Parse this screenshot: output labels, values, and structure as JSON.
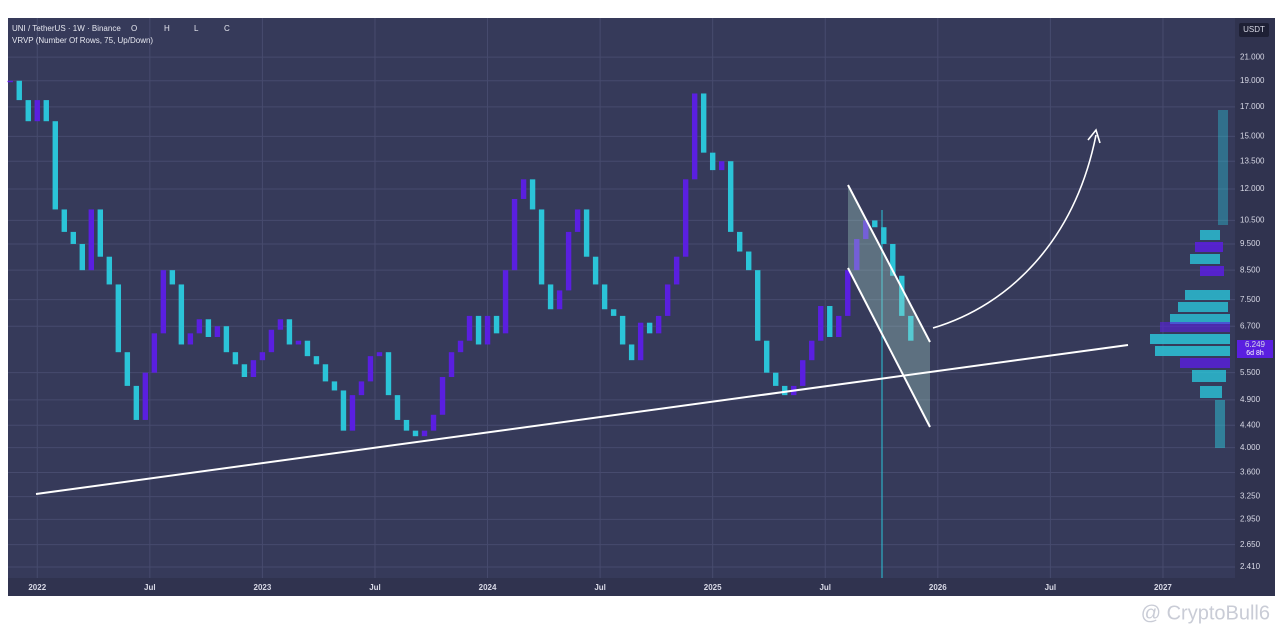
{
  "header": {
    "symbol": "UNI / TetherUS · 1W · Binance",
    "o": "O",
    "h": "H",
    "l": "L",
    "c": "C",
    "indicator": "VRVP (Number Of Rows, 75, Up/Down)"
  },
  "currency": "USDT",
  "price_label": "6.249",
  "countdown": "6d 8h",
  "watermark": "@ CryptoBull6",
  "chart_data": {
    "type": "candlestick",
    "up_color": "#5a1fe0",
    "down_color": "#2bc4d8",
    "log": true,
    "grid": true,
    "xlim": [
      2021.87,
      2027.32
    ],
    "ylim": [
      2.3,
      24.8
    ],
    "xticks": [
      2022,
      {
        "value": 2022.5,
        "label": "Jul"
      },
      2023,
      {
        "value": 2023.5,
        "label": "Jul"
      },
      2024,
      {
        "value": 2024.5,
        "label": "Jul"
      },
      2025,
      {
        "value": 2025.5,
        "label": "Jul"
      },
      2026,
      {
        "value": 2026.5,
        "label": "Jul"
      },
      2027
    ],
    "yticks": [
      {
        "value": 21,
        "label": "21.000"
      },
      {
        "value": 19,
        "label": "19.000"
      },
      {
        "value": 17,
        "label": "17.000"
      },
      {
        "value": 15,
        "label": "15.000"
      },
      {
        "value": 13.5,
        "label": "13.500"
      },
      {
        "value": 12,
        "label": "12.000"
      },
      {
        "value": 10.5,
        "label": "10.500"
      },
      {
        "value": 9.5,
        "label": "9.500"
      },
      {
        "value": 8.5,
        "label": "8.500"
      },
      {
        "value": 7.5,
        "label": "7.500"
      },
      {
        "value": 6.7,
        "label": "6.700"
      },
      {
        "value": 5.5,
        "label": "5.500"
      },
      {
        "value": 4.9,
        "label": "4.900"
      },
      {
        "value": 4.4,
        "label": "4.400"
      },
      {
        "value": 4,
        "label": "4.000"
      },
      {
        "value": 3.6,
        "label": "3.600"
      },
      {
        "value": 3.25,
        "label": "3.250"
      },
      {
        "value": 2.95,
        "label": "2.950"
      },
      {
        "value": 2.65,
        "label": "2.650"
      },
      {
        "value": 2.41,
        "label": "2.410"
      }
    ],
    "x": [
      2021.88,
      2021.92,
      2021.96,
      2022,
      2022.04,
      2022.08,
      2022.12,
      2022.16,
      2022.2,
      2022.24,
      2022.28,
      2022.32,
      2022.36,
      2022.4,
      2022.44,
      2022.48,
      2022.52,
      2022.56,
      2022.6,
      2022.64,
      2022.68,
      2022.72,
      2022.76,
      2022.8,
      2022.84,
      2022.88,
      2022.92,
      2022.96,
      2023,
      2023.04,
      2023.08,
      2023.12,
      2023.16,
      2023.2,
      2023.24,
      2023.28,
      2023.32,
      2023.36,
      2023.4,
      2023.44,
      2023.48,
      2023.52,
      2023.56,
      2023.6,
      2023.64,
      2023.68,
      2023.72,
      2023.76,
      2023.8,
      2023.84,
      2023.88,
      2023.92,
      2023.96,
      2024,
      2024.04,
      2024.08,
      2024.12,
      2024.16,
      2024.2,
      2024.24,
      2024.28,
      2024.32,
      2024.36,
      2024.4,
      2024.44,
      2024.48,
      2024.52,
      2024.56,
      2024.6,
      2024.64,
      2024.68,
      2024.72,
      2024.76,
      2024.8,
      2024.84,
      2024.88,
      2024.92,
      2024.96,
      2025,
      2025.04,
      2025.08,
      2025.12,
      2025.16,
      2025.2,
      2025.24,
      2025.28,
      2025.32,
      2025.36,
      2025.4,
      2025.44,
      2025.48,
      2025.52,
      2025.56,
      2025.6,
      2025.64,
      2025.68,
      2025.72,
      2025.76,
      2025.8,
      2025.84,
      2025.88
    ],
    "values": [
      19,
      17.5,
      16,
      17.5,
      16,
      11,
      10,
      9.5,
      8.5,
      11,
      9,
      8,
      6,
      5.2,
      4.5,
      5.5,
      6.5,
      8.5,
      8,
      6.2,
      6.5,
      6.9,
      6.4,
      6.7,
      6,
      5.7,
      5.4,
      5.8,
      6,
      6.6,
      6.9,
      6.2,
      6.3,
      5.9,
      5.7,
      5.3,
      5.1,
      4.3,
      5,
      5.3,
      5.9,
      6,
      5,
      4.5,
      4.3,
      4.2,
      4.3,
      4.6,
      5.4,
      6,
      6.3,
      7,
      6.2,
      7,
      6.5,
      8.5,
      11.5,
      12.5,
      11,
      8,
      7.2,
      7.8,
      10,
      11,
      9,
      8,
      7.2,
      7,
      6.2,
      5.8,
      6.8,
      6.5,
      7,
      8,
      9,
      12.5,
      18,
      14,
      13,
      13.5,
      10,
      9.2,
      8.5,
      6.3,
      5.5,
      5.2,
      5,
      5.2,
      5.8,
      6.3,
      7.3,
      6.4,
      7,
      8.5,
      9.7,
      10.5,
      10.2,
      9.5,
      8.3,
      7,
      6.3
    ]
  }
}
